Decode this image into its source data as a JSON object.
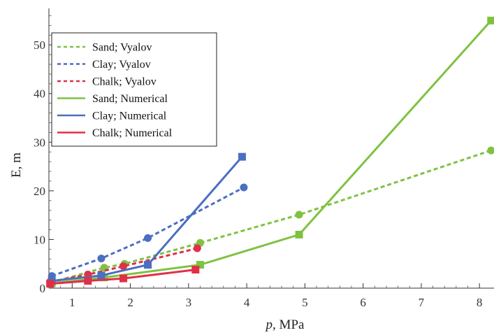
{
  "chart_data": {
    "type": "line",
    "title": "",
    "xlabel_italic": "p",
    "xlabel_rest": ", MPa",
    "ylabel": "E, m",
    "xlim": [
      0.6,
      8.25
    ],
    "ylim": [
      0,
      57.5
    ],
    "x_ticks": [
      1,
      2,
      3,
      4,
      5,
      6,
      7,
      8
    ],
    "y_ticks": [
      0,
      10,
      20,
      30,
      40,
      50
    ],
    "grid": false,
    "legend_position": "top-left",
    "series": [
      {
        "name": "Sand; Vyalov",
        "color": "#7fc241",
        "style": "dashed",
        "marker": "circle",
        "points": [
          [
            0.65,
            1.2
          ],
          [
            1.55,
            4.2
          ],
          [
            1.9,
            5.0
          ],
          [
            3.2,
            9.3
          ],
          [
            4.9,
            15.1
          ],
          [
            8.2,
            28.3
          ]
        ]
      },
      {
        "name": "Clay; Vyalov",
        "color": "#4a6fc1",
        "style": "dashed",
        "marker": "circle",
        "points": [
          [
            0.65,
            2.5
          ],
          [
            1.5,
            6.1
          ],
          [
            2.3,
            10.3
          ],
          [
            3.95,
            20.7
          ]
        ]
      },
      {
        "name": "Chalk; Vyalov",
        "color": "#e03047",
        "style": "dashed",
        "marker": "circle",
        "points": [
          [
            0.62,
            1.3
          ],
          [
            1.27,
            2.8
          ],
          [
            1.88,
            4.5
          ],
          [
            3.15,
            8.2
          ]
        ]
      },
      {
        "name": "Sand; Numerical",
        "color": "#7fc241",
        "style": "solid",
        "marker": "square",
        "points": [
          [
            0.65,
            1.0
          ],
          [
            1.55,
            2.2
          ],
          [
            3.2,
            4.8
          ],
          [
            4.9,
            11.0
          ],
          [
            8.2,
            55.0
          ]
        ]
      },
      {
        "name": "Clay; Numerical",
        "color": "#4a6fc1",
        "style": "solid",
        "marker": "square",
        "points": [
          [
            0.65,
            1.5
          ],
          [
            1.5,
            2.6
          ],
          [
            2.3,
            4.8
          ],
          [
            3.92,
            27.0
          ]
        ]
      },
      {
        "name": "Chalk; Numerical",
        "color": "#e03047",
        "style": "solid",
        "marker": "square",
        "points": [
          [
            0.62,
            0.9
          ],
          [
            1.27,
            1.5
          ],
          [
            1.88,
            2.0
          ],
          [
            3.12,
            3.8
          ]
        ]
      }
    ]
  }
}
